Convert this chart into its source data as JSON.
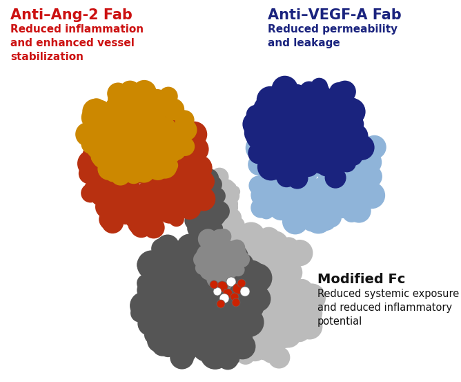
{
  "background_color": "#ffffff",
  "label_left_title": "Anti–Ang-2 Fab",
  "label_left_sub": "Reduced inflammation\nand enhanced vessel\nstabilization",
  "label_left_title_color": "#cc1111",
  "label_left_sub_color": "#cc1111",
  "label_right_title": "Anti–VEGF-A Fab",
  "label_right_sub": "Reduced permeability\nand leakage",
  "label_right_title_color": "#1a237e",
  "label_right_sub_color": "#1a237e",
  "label_bottom_title": "Modified Fc",
  "label_bottom_sub": "Reduced systemic exposure\nand reduced inflammatory\npotential",
  "label_bottom_title_color": "#111111",
  "label_bottom_sub_color": "#111111",
  "color_red": "#b83010",
  "color_gold": "#cc8800",
  "color_dark_blue": "#1a237e",
  "color_light_blue": "#8fb4d9",
  "color_dark_gray": "#555555",
  "color_mid_gray": "#888888",
  "color_light_gray": "#bbbbbb",
  "color_red_mol": "#cc2200",
  "color_white_mol": "#ffffff"
}
